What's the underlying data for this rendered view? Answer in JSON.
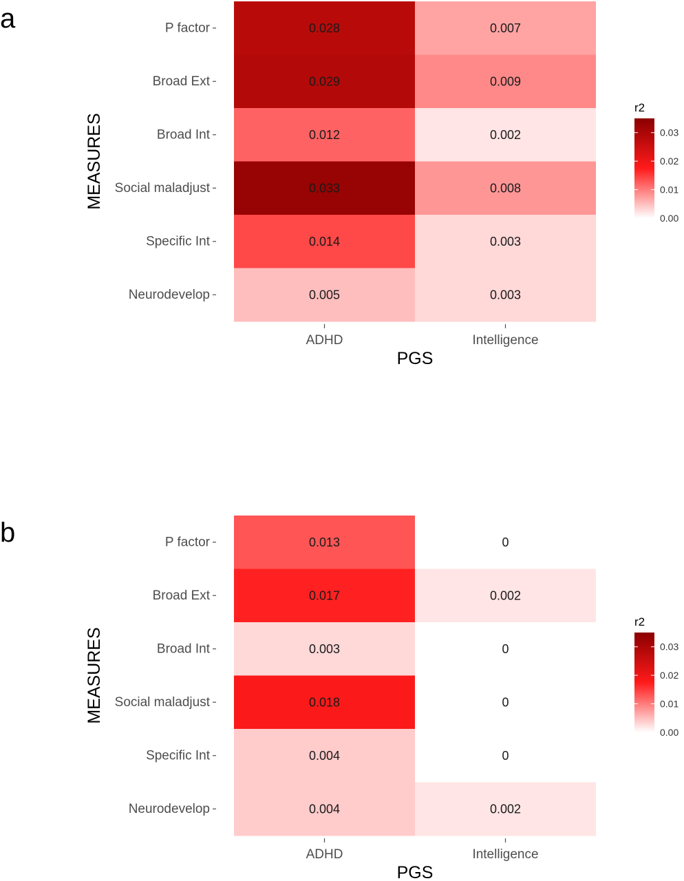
{
  "colors": {
    "low": "#ffffff",
    "mid": "#ff1a1a",
    "high": "#8b0000",
    "tick": "#4d4d4d"
  },
  "chart_data": [
    {
      "type": "heatmap",
      "panel": "a",
      "xlabel": "PGS",
      "ylabel": "MEASURES",
      "x_categories": [
        "ADHD",
        "Intelligence"
      ],
      "y_categories": [
        "P factor",
        "Broad Ext",
        "Broad Int",
        "Social maladjust",
        "Specific Int",
        "Neurodevelop"
      ],
      "values": [
        [
          0.028,
          0.007
        ],
        [
          0.029,
          0.009
        ],
        [
          0.012,
          0.002
        ],
        [
          0.033,
          0.008
        ],
        [
          0.014,
          0.003
        ],
        [
          0.005,
          0.003
        ]
      ],
      "labels": [
        [
          "0.028",
          "0.007"
        ],
        [
          "0.029",
          "0.009"
        ],
        [
          "0.012",
          "0.002"
        ],
        [
          "0.033",
          "0.008"
        ],
        [
          "0.014",
          "0.003"
        ],
        [
          "0.005",
          "0.003"
        ]
      ],
      "legend": {
        "title": "r2",
        "range": [
          0,
          0.035
        ],
        "ticks": [
          0.0,
          0.01,
          0.02,
          0.03
        ],
        "tick_labels": [
          "0.00",
          "0.01",
          "0.02",
          "0.03"
        ],
        "placement": "right"
      },
      "grid": false
    },
    {
      "type": "heatmap",
      "panel": "b",
      "xlabel": "PGS",
      "ylabel": "MEASURES",
      "x_categories": [
        "ADHD",
        "Intelligence"
      ],
      "y_categories": [
        "P factor",
        "Broad Ext",
        "Broad Int",
        "Social maladjust",
        "Specific Int",
        "Neurodevelop"
      ],
      "values": [
        [
          0.013,
          0
        ],
        [
          0.017,
          0.002
        ],
        [
          0.003,
          0
        ],
        [
          0.018,
          0
        ],
        [
          0.004,
          0
        ],
        [
          0.004,
          0.002
        ]
      ],
      "labels": [
        [
          "0.013",
          "0"
        ],
        [
          "0.017",
          "0.002"
        ],
        [
          "0.003",
          "0"
        ],
        [
          "0.018",
          "0"
        ],
        [
          "0.004",
          "0"
        ],
        [
          "0.004",
          "0.002"
        ]
      ],
      "legend": {
        "title": "r2",
        "range": [
          0,
          0.035
        ],
        "ticks": [
          0.0,
          0.01,
          0.02,
          0.03
        ],
        "tick_labels": [
          "0.00",
          "0.01",
          "0.02",
          "0.03"
        ],
        "placement": "right"
      },
      "grid": false
    }
  ]
}
